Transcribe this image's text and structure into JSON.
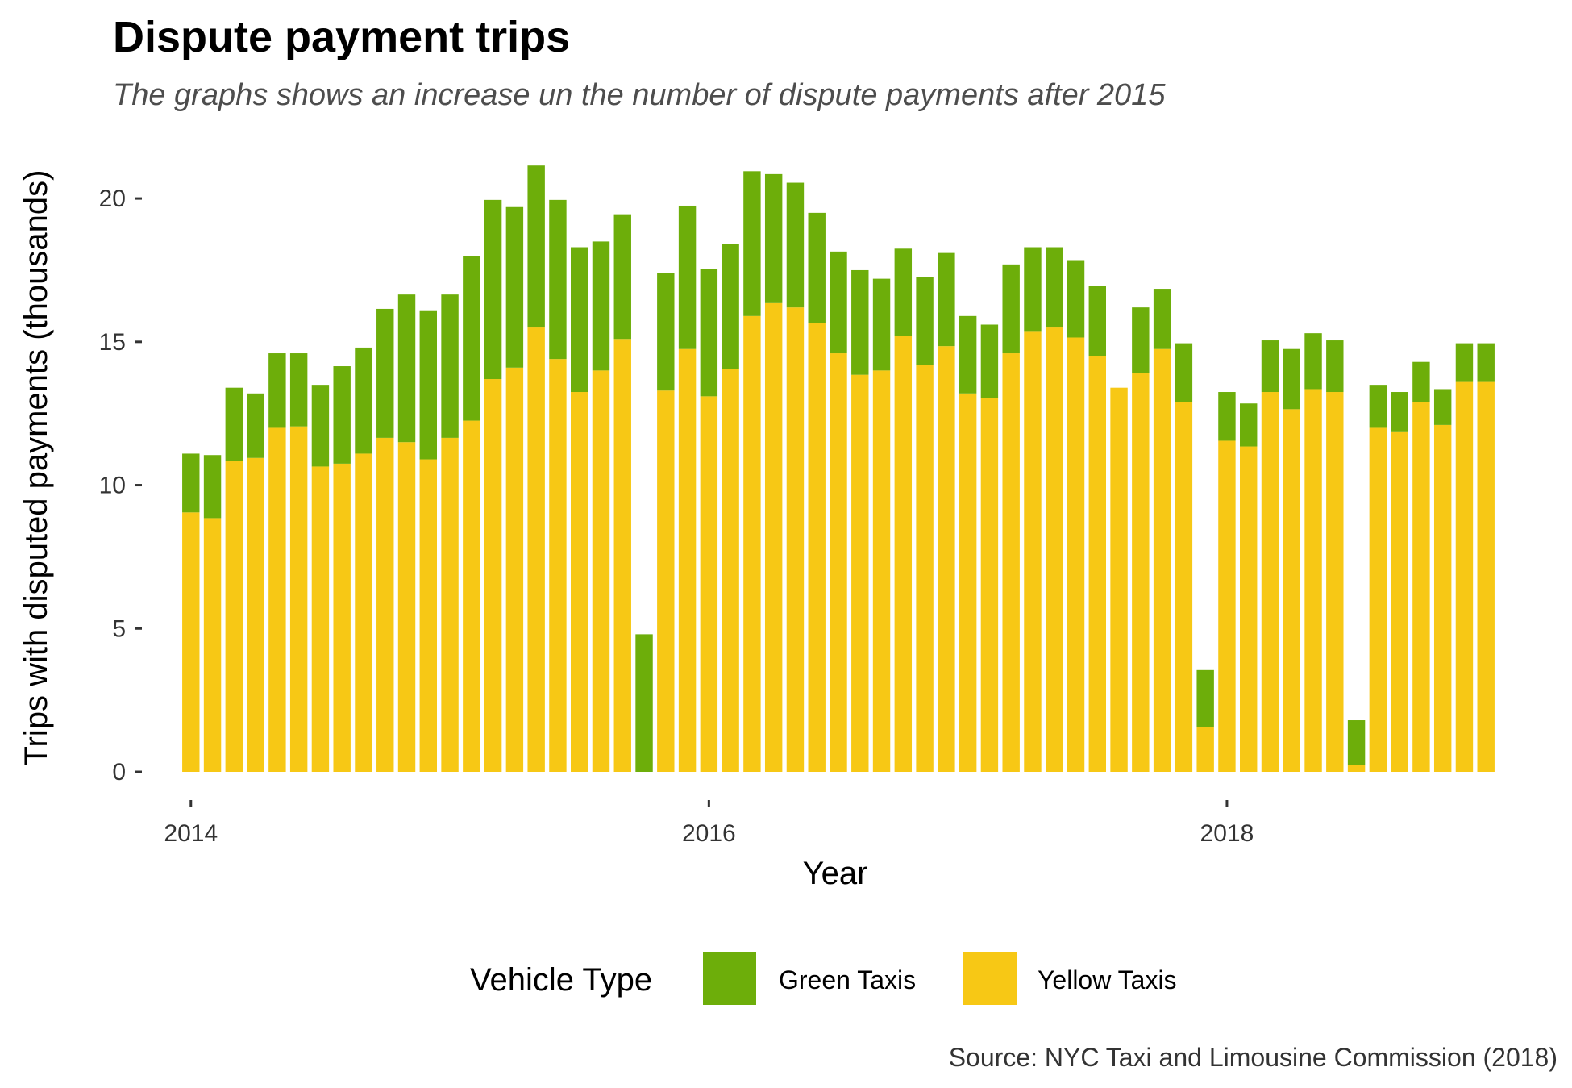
{
  "chart_data": {
    "type": "bar",
    "stacked": true,
    "title": "Dispute payment trips",
    "subtitle": "The graphs shows an increase un the number of dispute payments after 2015",
    "xlabel": "Year",
    "ylabel": "Trips with disputed payments (thousands)",
    "caption": "Source: NYC Taxi and Limousine Commission (2018)",
    "x_ticks": [
      2014,
      2016,
      2018
    ],
    "y_ticks": [
      0,
      5,
      10,
      15,
      20
    ],
    "xlim": [
      "2013-12-01",
      "2019-02-01"
    ],
    "ylim": [
      0,
      22
    ],
    "grid": false,
    "legend": {
      "title": "Vehicle Type",
      "position": "bottom"
    },
    "x": [
      "2014-01",
      "2014-02",
      "2014-03",
      "2014-04",
      "2014-05",
      "2014-06",
      "2014-07",
      "2014-08",
      "2014-09",
      "2014-10",
      "2014-11",
      "2014-12",
      "2015-01",
      "2015-02",
      "2015-03",
      "2015-04",
      "2015-05",
      "2015-06",
      "2015-07",
      "2015-08",
      "2015-09",
      "2015-10",
      "2015-11",
      "2015-12",
      "2016-01",
      "2016-02",
      "2016-03",
      "2016-04",
      "2016-05",
      "2016-06",
      "2016-07",
      "2016-08",
      "2016-09",
      "2016-10",
      "2016-11",
      "2016-12",
      "2017-01",
      "2017-02",
      "2017-03",
      "2017-04",
      "2017-05",
      "2017-06",
      "2017-07",
      "2017-08",
      "2017-09",
      "2017-10",
      "2017-11",
      "2017-12",
      "2018-01",
      "2018-02",
      "2018-03",
      "2018-04",
      "2018-05",
      "2018-06",
      "2018-07",
      "2018-08",
      "2018-09",
      "2018-10",
      "2018-11",
      "2018-12",
      "2019-01"
    ],
    "series": [
      {
        "name": "Yellow Taxis",
        "color": "#F7C815",
        "values": [
          9.05,
          8.85,
          10.85,
          10.95,
          12.0,
          12.05,
          10.65,
          10.75,
          11.1,
          11.65,
          11.5,
          10.9,
          11.65,
          12.25,
          13.7,
          14.1,
          15.5,
          14.4,
          13.25,
          14.0,
          15.1,
          0,
          13.3,
          14.75,
          13.1,
          14.05,
          15.9,
          16.35,
          16.2,
          15.65,
          14.6,
          13.85,
          14.0,
          15.2,
          14.2,
          14.85,
          13.2,
          13.05,
          14.6,
          15.35,
          15.5,
          15.15,
          14.5,
          13.4,
          13.9,
          14.75,
          12.9,
          1.55,
          11.55,
          11.35,
          13.25,
          12.65,
          13.35,
          13.25,
          0.25,
          12.0,
          11.85,
          12.9,
          12.1,
          13.6,
          13.6
        ],
        "totals": [
          11.1,
          11.05,
          13.4,
          13.2,
          14.6,
          14.6,
          13.5,
          14.15,
          14.8,
          16.15,
          16.65,
          16.1,
          16.65,
          18.0,
          19.95,
          19.7,
          21.15,
          19.95,
          18.3,
          18.5,
          19.45,
          4.8,
          17.4,
          19.75,
          17.55,
          18.4,
          20.95,
          20.85,
          20.55,
          19.5,
          18.15,
          17.5,
          17.2,
          18.25,
          17.25,
          18.1,
          15.9,
          15.6,
          17.7,
          18.3,
          18.3,
          17.85,
          16.95,
          13.4,
          16.2,
          16.85,
          14.95,
          3.55,
          13.25,
          12.85,
          15.05,
          14.75,
          15.3,
          15.05,
          1.8,
          13.5,
          13.25,
          14.3,
          13.35,
          14.95,
          14.95
        ]
      },
      {
        "name": "Green Taxis",
        "color": "#6DAE0A",
        "values": [
          2.05,
          2.2,
          2.55,
          2.25,
          2.6,
          2.55,
          2.85,
          3.4,
          3.7,
          4.5,
          5.15,
          5.2,
          5.0,
          5.75,
          6.25,
          5.6,
          5.65,
          5.55,
          5.05,
          4.5,
          4.35,
          4.8,
          4.1,
          5.0,
          4.45,
          4.35,
          5.05,
          4.5,
          4.35,
          3.85,
          3.55,
          3.65,
          3.2,
          3.05,
          3.05,
          3.25,
          2.7,
          2.55,
          3.1,
          2.95,
          2.8,
          2.7,
          2.45,
          0,
          2.3,
          2.1,
          2.05,
          2.0,
          1.7,
          1.5,
          1.8,
          2.1,
          1.95,
          1.8,
          1.55,
          1.5,
          1.4,
          1.4,
          1.25,
          1.35,
          1.35
        ]
      }
    ]
  }
}
